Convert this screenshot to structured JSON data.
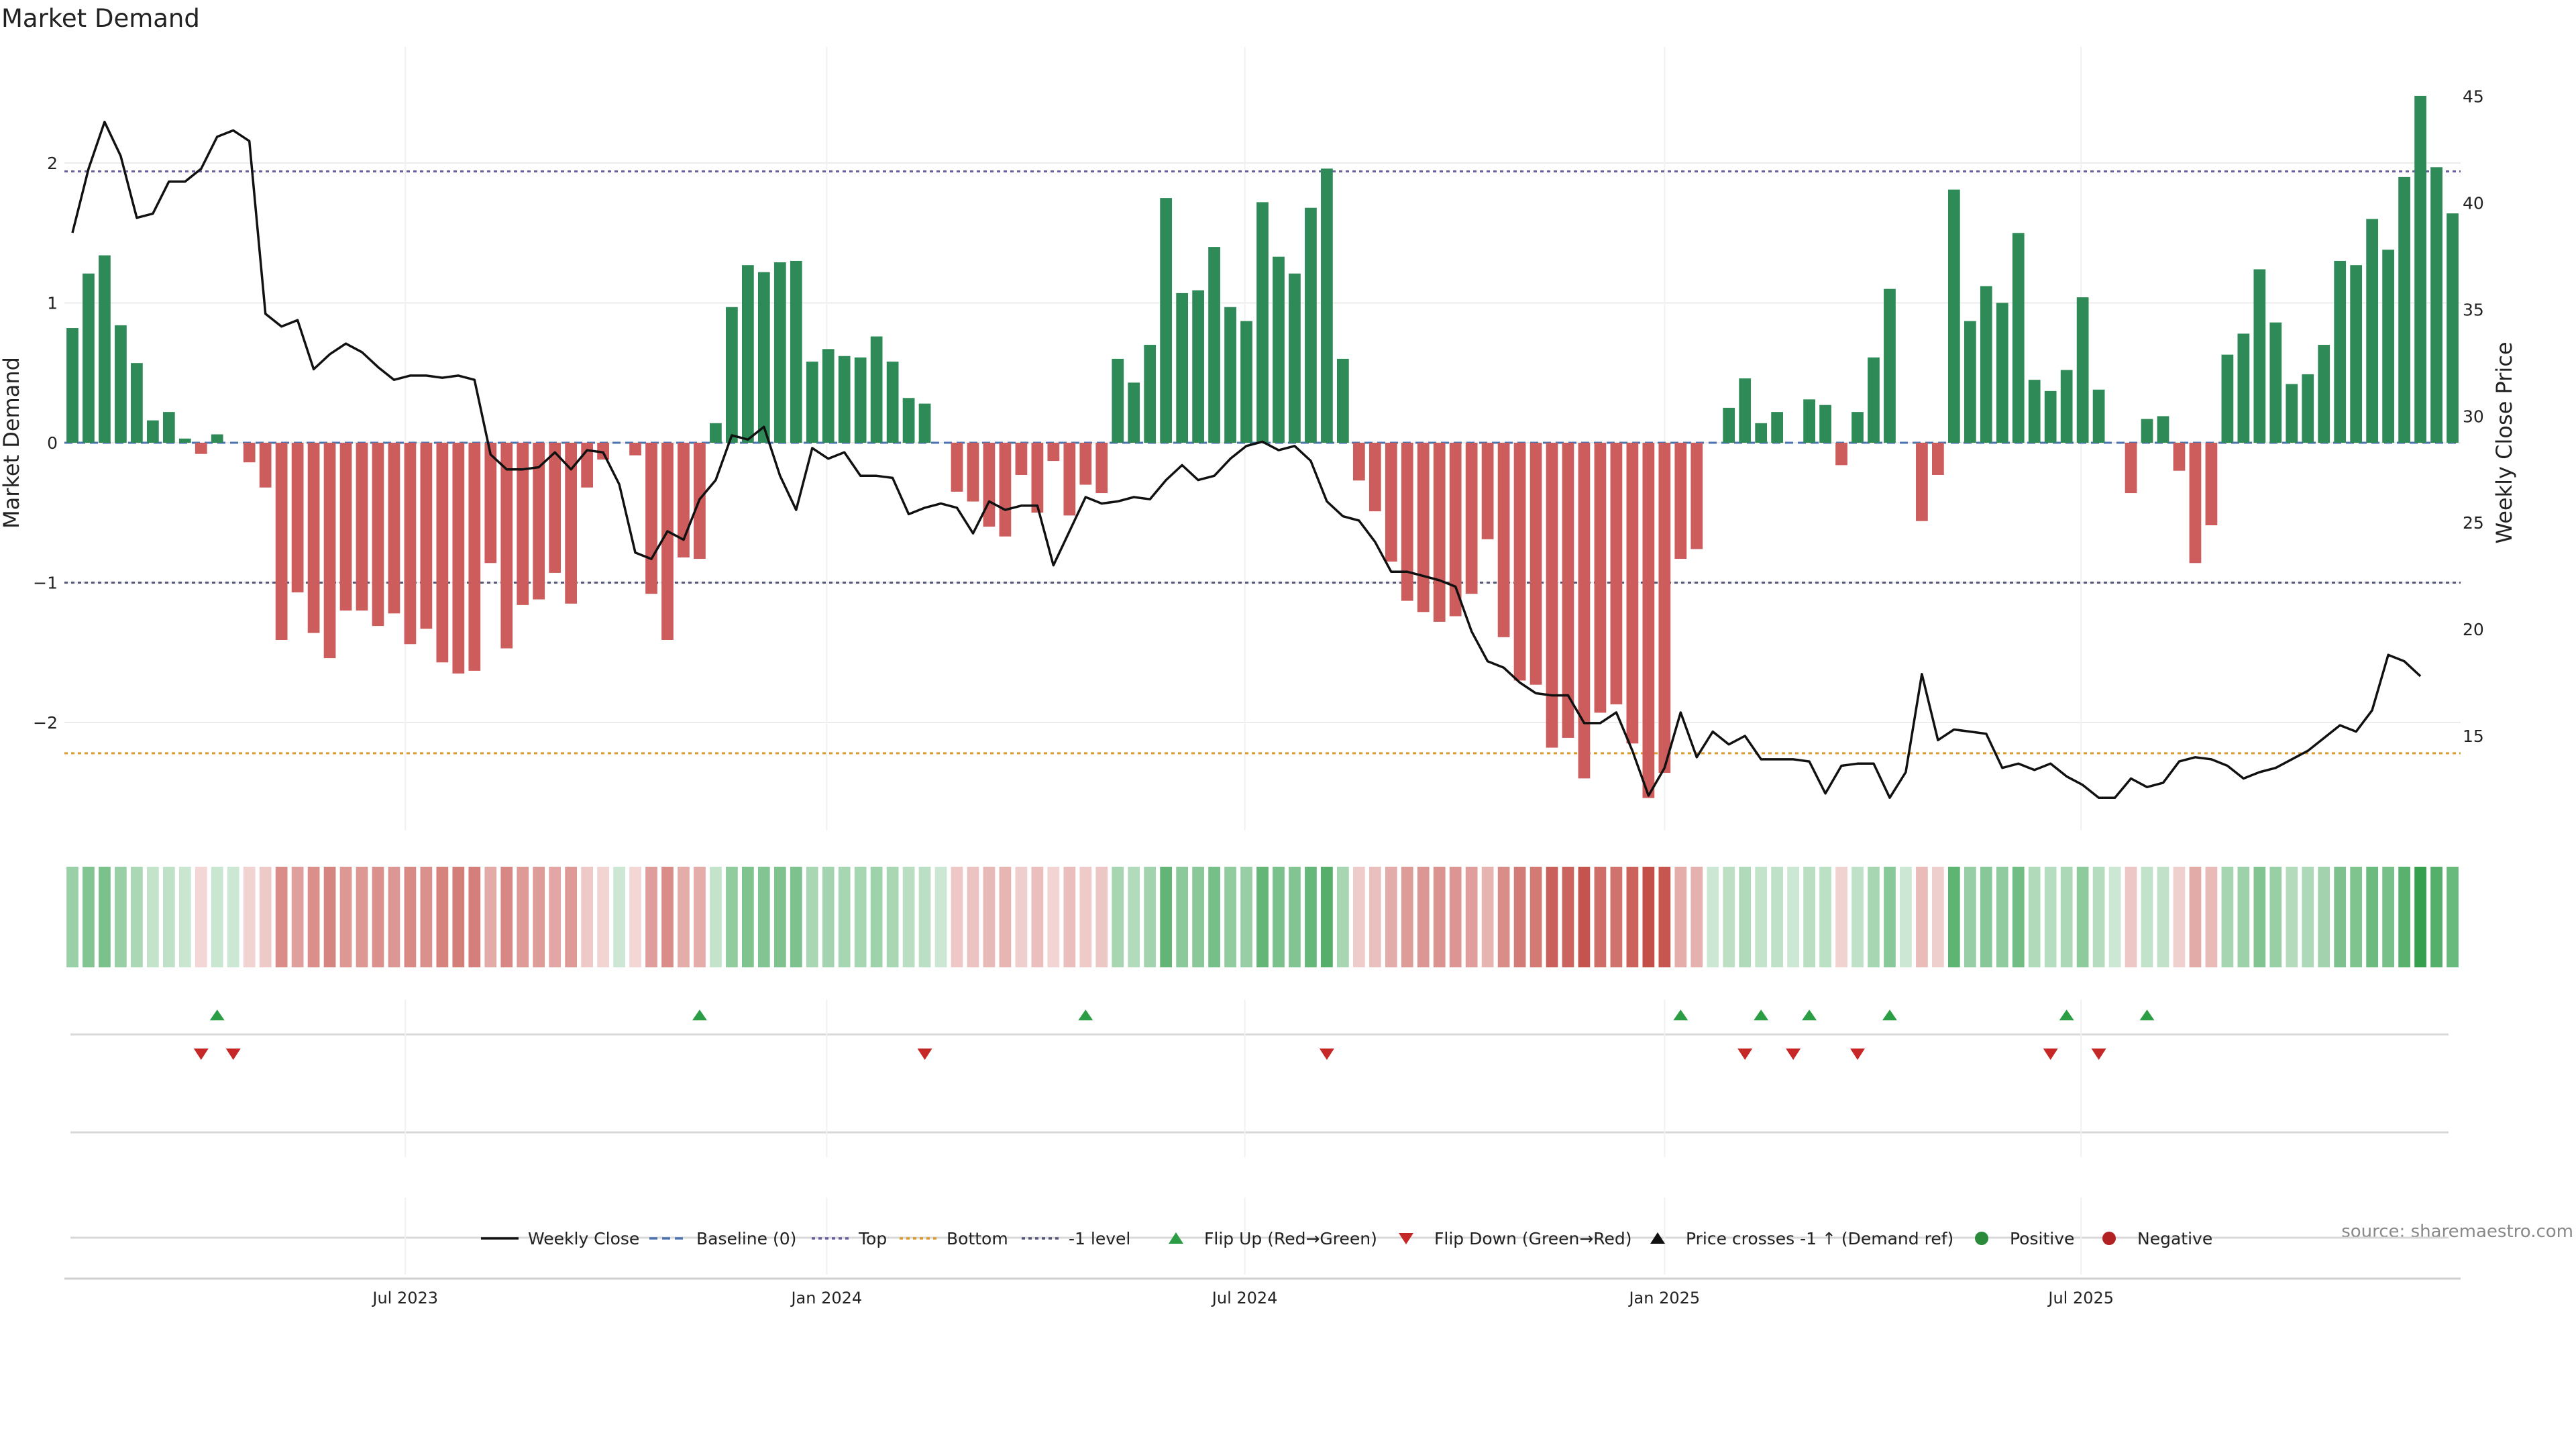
{
  "chart_data": {
    "type": "bar",
    "title": "Market Demand",
    "ylabel": "Market Demand",
    "y2label": "Weekly Close Price",
    "ylim": [
      -2.8,
      2.8
    ],
    "y2lim": [
      10.5,
      47.0
    ],
    "yticks": [
      2,
      1,
      0,
      -1,
      -2
    ],
    "ytick_labels": [
      "2",
      "1",
      "0",
      "−1",
      "−2"
    ],
    "y2ticks": [
      45,
      40,
      35,
      30,
      25,
      20,
      15
    ],
    "y2tick_labels": [
      "45",
      "40",
      "35",
      "30",
      "25",
      "20",
      "15"
    ],
    "levels": {
      "top": 1.94,
      "minus_one": -1.0,
      "bottom": -2.22,
      "baseline": 0
    },
    "start_week": "2023-01-08",
    "x_ticks": [
      {
        "label": "Jul 2023",
        "week": 20.7
      },
      {
        "label": "Jan 2024",
        "week": 46.9
      },
      {
        "label": "Jul 2024",
        "week": 72.9
      },
      {
        "label": "Jan 2025",
        "week": 99.0
      },
      {
        "label": "Jul 2025",
        "week": 124.9
      }
    ],
    "demand": [
      0.82,
      1.21,
      1.34,
      0.84,
      0.57,
      0.16,
      0.22,
      0.03,
      -0.08,
      0.06,
      0.0,
      -0.14,
      -0.32,
      -1.41,
      -1.07,
      -1.36,
      -1.54,
      -1.2,
      -1.2,
      -1.31,
      -1.22,
      -1.44,
      -1.33,
      -1.57,
      -1.65,
      -1.63,
      -0.86,
      -1.47,
      -1.16,
      -1.12,
      -0.93,
      -1.15,
      -0.32,
      -0.12,
      0.0,
      -0.09,
      -1.08,
      -1.41,
      -0.82,
      -0.83,
      0.14,
      0.97,
      1.27,
      1.22,
      1.29,
      1.3,
      0.58,
      0.67,
      0.62,
      0.61,
      0.76,
      0.58,
      0.32,
      0.28,
      0.0,
      -0.35,
      -0.42,
      -0.6,
      -0.67,
      -0.23,
      -0.5,
      -0.13,
      -0.52,
      -0.3,
      -0.36,
      0.6,
      0.43,
      0.7,
      1.75,
      1.07,
      1.09,
      1.4,
      0.97,
      0.87,
      1.72,
      1.33,
      1.21,
      1.68,
      1.96,
      0.6,
      -0.27,
      -0.49,
      -0.85,
      -1.13,
      -1.21,
      -1.28,
      -1.24,
      -1.08,
      -0.69,
      -1.39,
      -1.7,
      -1.73,
      -2.18,
      -2.11,
      -2.4,
      -1.93,
      -1.87,
      -2.15,
      -2.54,
      -2.36,
      -0.83,
      -0.76,
      0.0,
      0.25,
      0.46,
      0.14,
      0.22,
      0.0,
      0.31,
      0.27,
      -0.16,
      0.22,
      0.61,
      1.1,
      0.0,
      -0.56,
      -0.23,
      1.81,
      0.87,
      1.12,
      1.0,
      1.5,
      0.45,
      0.37,
      0.52,
      1.04,
      0.38,
      0.0,
      -0.36,
      0.17,
      0.19,
      -0.2,
      -0.86,
      -0.59,
      0.63,
      0.78,
      1.24,
      0.86,
      0.42,
      0.49,
      0.7,
      1.3,
      1.27,
      1.6,
      1.38,
      1.9,
      2.48,
      1.97,
      1.64
    ],
    "price": [
      38.6,
      41.6,
      43.8,
      42.2,
      39.3,
      39.5,
      41.0,
      41.0,
      41.6,
      43.1,
      43.4,
      42.9,
      34.8,
      34.2,
      34.5,
      32.2,
      32.9,
      33.4,
      33.0,
      32.3,
      31.7,
      31.9,
      31.9,
      31.8,
      31.9,
      31.7,
      28.2,
      27.5,
      27.5,
      27.6,
      28.3,
      27.5,
      28.4,
      28.3,
      26.8,
      23.6,
      23.3,
      24.6,
      24.2,
      26.1,
      27.0,
      29.1,
      28.9,
      29.5,
      27.2,
      25.6,
      28.5,
      28.0,
      28.3,
      27.2,
      27.2,
      27.1,
      25.4,
      25.7,
      25.9,
      25.7,
      24.5,
      26.0,
      25.6,
      25.8,
      25.8,
      23.0,
      24.6,
      26.2,
      25.9,
      26.0,
      26.2,
      26.1,
      27.0,
      27.7,
      27.0,
      27.2,
      28.0,
      28.6,
      28.8,
      28.4,
      28.6,
      27.9,
      26.0,
      25.3,
      25.1,
      24.1,
      22.7,
      22.7,
      22.5,
      22.3,
      22.0,
      19.9,
      18.5,
      18.2,
      17.5,
      17.0,
      16.9,
      16.9,
      15.6,
      15.6,
      16.1,
      14.3,
      12.2,
      13.5,
      16.1,
      14.0,
      15.2,
      14.6,
      15.0,
      13.9,
      13.9,
      13.9,
      13.8,
      12.3,
      13.6,
      13.7,
      13.7,
      12.1,
      13.3,
      17.9,
      14.8,
      15.3,
      15.2,
      15.1,
      13.5,
      13.7,
      13.4,
      13.7,
      13.1,
      12.7,
      12.1,
      12.1,
      13.0,
      12.6,
      12.8,
      13.8,
      14.0,
      13.9,
      13.6,
      13.0,
      13.3,
      13.5,
      13.9,
      14.3,
      14.9,
      15.5,
      15.2,
      16.2,
      18.8,
      18.5,
      17.8
    ],
    "flip_up_weeks": [
      9,
      39,
      63,
      100,
      105,
      108,
      113,
      124,
      129
    ],
    "flip_down_weeks": [
      8,
      10,
      53,
      78,
      104,
      107,
      111,
      123,
      126
    ],
    "legend": [
      {
        "label": "Weekly Close",
        "marker": "line-solid",
        "color": "#111111"
      },
      {
        "label": "Baseline (0)",
        "marker": "line-dashed",
        "color": "#4c72b0"
      },
      {
        "label": "Top",
        "marker": "line-dotted",
        "color": "#6a5d9e"
      },
      {
        "label": "Bottom",
        "marker": "line-dotted",
        "color": "#d99a2b"
      },
      {
        "label": "-1 level",
        "marker": "line-dotted",
        "color": "#555577"
      },
      {
        "label": "Flip Up (Red→Green)",
        "marker": "triangle-up",
        "color": "#2a9d45"
      },
      {
        "label": "Flip Down (Green→Red)",
        "marker": "triangle-down",
        "color": "#c62828"
      },
      {
        "label": "Price crosses -1 ↑ (Demand ref)",
        "marker": "triangle-up",
        "color": "#111111"
      },
      {
        "label": "Positive",
        "marker": "dot",
        "color": "#2a8a3a"
      },
      {
        "label": "Negative",
        "marker": "dot",
        "color": "#b22222"
      }
    ],
    "source": "source: sharemaestro.com",
    "colors": {
      "positive": "#2e8b57",
      "negative": "#cd5c5c",
      "price": "#111111"
    }
  }
}
